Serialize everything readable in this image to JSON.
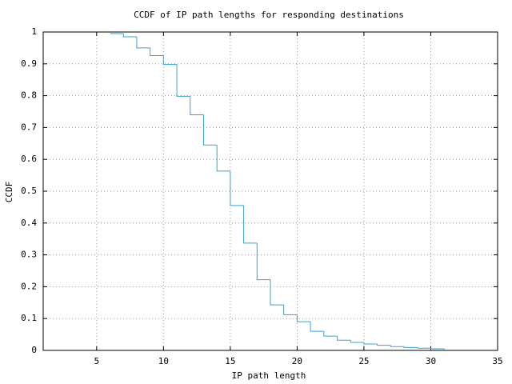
{
  "chart_data": {
    "type": "step",
    "title": "CCDF of IP path lengths for responding destinations",
    "x_label": "IP path length",
    "y_label": "CCDF",
    "x": [
      6,
      7,
      8,
      9,
      10,
      11,
      12,
      13,
      14,
      15,
      16,
      17,
      18,
      19,
      20,
      21,
      22,
      23,
      24,
      25,
      26,
      27,
      28,
      29,
      30,
      31
    ],
    "values": [
      0.995,
      0.985,
      0.95,
      0.926,
      0.898,
      0.798,
      0.74,
      0.645,
      0.563,
      0.455,
      0.337,
      0.222,
      0.143,
      0.112,
      0.09,
      0.06,
      0.045,
      0.032,
      0.025,
      0.02,
      0.016,
      0.012,
      0.009,
      0.007,
      0.005,
      0.001
    ],
    "color": "#3ba3c8",
    "xlim": [
      1,
      35
    ],
    "xticks": [
      5,
      10,
      15,
      20,
      25,
      30,
      35
    ],
    "ylim": [
      0,
      1
    ],
    "yticks": [
      0,
      0.1,
      0.2,
      0.3,
      0.4,
      0.5,
      0.6,
      0.7,
      0.8,
      0.9,
      1
    ],
    "grid": true
  }
}
